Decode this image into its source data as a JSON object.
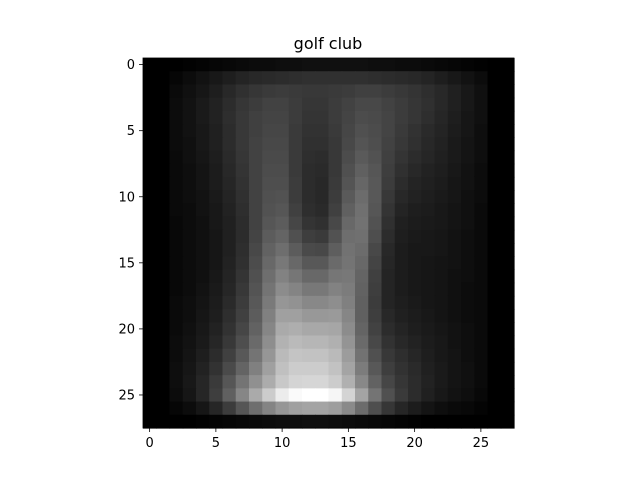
{
  "chart_data": {
    "type": "heatmap",
    "title": "golf club",
    "xlabel": "",
    "ylabel": "",
    "rows": 28,
    "cols": 28,
    "x_ticks": [
      0,
      5,
      10,
      15,
      20,
      25
    ],
    "y_ticks": [
      0,
      5,
      10,
      15,
      20,
      25
    ],
    "xlim": [
      -0.5,
      27.5
    ],
    "ylim": [
      27.5,
      -0.5
    ],
    "colormap": "gray",
    "value_range": [
      0,
      255
    ],
    "grid": false,
    "values": [
      [
        0,
        0,
        0,
        2,
        4,
        6,
        8,
        10,
        12,
        12,
        14,
        14,
        16,
        16,
        16,
        16,
        16,
        14,
        14,
        12,
        12,
        10,
        8,
        6,
        4,
        2,
        0,
        0
      ],
      [
        0,
        0,
        6,
        12,
        18,
        24,
        30,
        36,
        40,
        42,
        44,
        46,
        48,
        48,
        48,
        48,
        48,
        46,
        44,
        42,
        40,
        36,
        30,
        24,
        18,
        12,
        0,
        0
      ],
      [
        0,
        0,
        10,
        16,
        22,
        30,
        40,
        48,
        54,
        58,
        60,
        58,
        56,
        56,
        58,
        60,
        64,
        64,
        60,
        56,
        52,
        46,
        40,
        32,
        24,
        16,
        0,
        0
      ],
      [
        0,
        0,
        12,
        18,
        26,
        34,
        44,
        54,
        60,
        66,
        66,
        60,
        54,
        54,
        60,
        66,
        72,
        72,
        66,
        60,
        54,
        48,
        40,
        32,
        24,
        16,
        0,
        0
      ],
      [
        0,
        0,
        12,
        18,
        26,
        34,
        46,
        56,
        64,
        68,
        68,
        60,
        52,
        52,
        60,
        68,
        76,
        74,
        68,
        60,
        54,
        46,
        38,
        30,
        22,
        16,
        0,
        0
      ],
      [
        0,
        0,
        12,
        18,
        24,
        32,
        44,
        56,
        64,
        70,
        70,
        58,
        50,
        50,
        58,
        70,
        80,
        76,
        68,
        58,
        50,
        42,
        36,
        28,
        22,
        14,
        0,
        0
      ],
      [
        0,
        0,
        12,
        16,
        24,
        32,
        44,
        56,
        66,
        72,
        72,
        58,
        48,
        48,
        56,
        72,
        84,
        78,
        66,
        56,
        48,
        40,
        34,
        26,
        20,
        14,
        0,
        0
      ],
      [
        0,
        0,
        10,
        16,
        22,
        30,
        42,
        54,
        66,
        74,
        74,
        58,
        46,
        44,
        56,
        76,
        90,
        82,
        64,
        52,
        44,
        38,
        32,
        26,
        20,
        14,
        0,
        0
      ],
      [
        0,
        0,
        10,
        14,
        20,
        28,
        40,
        52,
        66,
        76,
        76,
        58,
        44,
        42,
        56,
        80,
        96,
        86,
        62,
        48,
        40,
        34,
        30,
        24,
        18,
        12,
        0,
        0
      ],
      [
        0,
        0,
        10,
        14,
        20,
        28,
        38,
        50,
        66,
        78,
        78,
        60,
        44,
        40,
        58,
        84,
        102,
        88,
        60,
        44,
        36,
        32,
        28,
        22,
        18,
        12,
        0,
        0
      ],
      [
        0,
        0,
        10,
        14,
        18,
        26,
        36,
        48,
        66,
        80,
        82,
        60,
        44,
        40,
        60,
        90,
        108,
        88,
        56,
        40,
        34,
        30,
        26,
        22,
        16,
        12,
        0,
        0
      ],
      [
        0,
        0,
        10,
        12,
        18,
        24,
        34,
        46,
        66,
        82,
        86,
        64,
        46,
        42,
        64,
        96,
        112,
        86,
        52,
        36,
        30,
        28,
        24,
        20,
        16,
        10,
        0,
        0
      ],
      [
        0,
        0,
        8,
        12,
        16,
        24,
        32,
        44,
        66,
        86,
        92,
        70,
        52,
        48,
        72,
        104,
        114,
        82,
        48,
        32,
        28,
        26,
        24,
        20,
        16,
        10,
        0,
        0
      ],
      [
        0,
        0,
        8,
        12,
        16,
        22,
        32,
        44,
        68,
        92,
        100,
        80,
        62,
        58,
        82,
        110,
        112,
        78,
        44,
        30,
        26,
        24,
        22,
        18,
        14,
        10,
        0,
        0
      ],
      [
        0,
        0,
        8,
        12,
        16,
        22,
        32,
        46,
        72,
        98,
        110,
        92,
        74,
        72,
        94,
        114,
        108,
        72,
        40,
        28,
        24,
        24,
        22,
        18,
        14,
        10,
        0,
        0
      ],
      [
        0,
        0,
        8,
        12,
        16,
        22,
        34,
        48,
        76,
        104,
        120,
        104,
        88,
        88,
        106,
        116,
        104,
        68,
        38,
        28,
        24,
        22,
        20,
        18,
        14,
        10,
        0,
        0
      ],
      [
        0,
        0,
        8,
        12,
        16,
        24,
        36,
        52,
        80,
        110,
        130,
        118,
        104,
        104,
        118,
        120,
        100,
        64,
        36,
        28,
        24,
        22,
        20,
        16,
        14,
        10,
        0,
        0
      ],
      [
        0,
        0,
        8,
        12,
        18,
        26,
        38,
        56,
        84,
        116,
        140,
        132,
        120,
        120,
        130,
        124,
        98,
        62,
        36,
        28,
        24,
        22,
        20,
        16,
        12,
        10,
        0,
        0
      ],
      [
        0,
        0,
        10,
        14,
        20,
        28,
        42,
        60,
        88,
        122,
        150,
        146,
        136,
        136,
        142,
        128,
        96,
        60,
        36,
        30,
        26,
        22,
        20,
        16,
        12,
        10,
        0,
        0
      ],
      [
        0,
        0,
        10,
        14,
        22,
        30,
        46,
        64,
        92,
        128,
        160,
        160,
        152,
        152,
        154,
        134,
        96,
        62,
        40,
        32,
        28,
        24,
        20,
        16,
        12,
        10,
        0,
        0
      ],
      [
        0,
        0,
        10,
        16,
        24,
        34,
        50,
        70,
        98,
        134,
        170,
        174,
        168,
        168,
        166,
        140,
        100,
        66,
        44,
        36,
        30,
        26,
        22,
        18,
        14,
        10,
        0,
        0
      ],
      [
        0,
        0,
        12,
        18,
        26,
        38,
        56,
        78,
        106,
        142,
        178,
        186,
        182,
        182,
        176,
        148,
        106,
        72,
        50,
        40,
        34,
        28,
        24,
        18,
        14,
        10,
        0,
        0
      ],
      [
        0,
        0,
        12,
        20,
        30,
        44,
        64,
        88,
        116,
        150,
        186,
        196,
        194,
        194,
        186,
        156,
        114,
        80,
        56,
        46,
        38,
        30,
        24,
        20,
        14,
        10,
        0,
        0
      ],
      [
        0,
        0,
        14,
        22,
        34,
        50,
        74,
        100,
        128,
        160,
        192,
        204,
        204,
        204,
        194,
        164,
        124,
        88,
        62,
        50,
        42,
        32,
        26,
        20,
        16,
        10,
        0,
        0
      ],
      [
        0,
        0,
        14,
        24,
        38,
        58,
        86,
        116,
        144,
        172,
        200,
        212,
        214,
        214,
        204,
        176,
        136,
        98,
        70,
        54,
        44,
        34,
        26,
        20,
        16,
        10,
        0,
        0
      ],
      [
        0,
        0,
        12,
        22,
        38,
        62,
        96,
        134,
        170,
        204,
        236,
        250,
        255,
        255,
        246,
        212,
        164,
        116,
        80,
        58,
        44,
        32,
        24,
        18,
        14,
        8,
        0,
        0
      ],
      [
        0,
        0,
        6,
        12,
        22,
        38,
        60,
        86,
        110,
        132,
        150,
        160,
        164,
        164,
        158,
        138,
        108,
        78,
        54,
        38,
        28,
        20,
        14,
        10,
        8,
        4,
        0,
        0
      ],
      [
        0,
        0,
        0,
        0,
        2,
        4,
        6,
        8,
        10,
        12,
        14,
        14,
        16,
        16,
        14,
        12,
        10,
        8,
        6,
        4,
        2,
        0,
        0,
        0,
        0,
        0,
        0,
        0
      ]
    ]
  }
}
